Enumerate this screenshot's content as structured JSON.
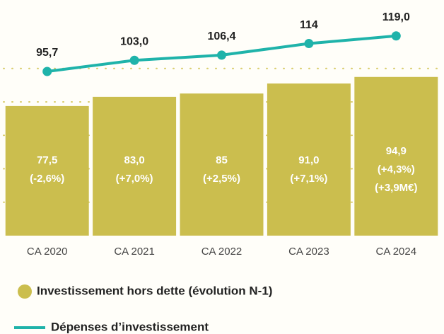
{
  "chart_data": {
    "type": "bar_line",
    "categories": [
      "CA 2020",
      "CA 2021",
      "CA 2022",
      "CA 2023",
      "CA 2024"
    ],
    "series": [
      {
        "name": "Investissement hors dette (évolution N-1)",
        "type": "bar",
        "color": "#cbbe4e",
        "values": [
          77.5,
          83.0,
          85,
          91.0,
          94.9
        ],
        "value_labels": [
          [
            "77,5",
            "(-2,6%)"
          ],
          [
            "83,0",
            "(+7,0%)"
          ],
          [
            "85",
            "(+2,5%)"
          ],
          [
            "91,0",
            "(+7,1%)"
          ],
          [
            "94,9",
            "(+4,3%)",
            "(+3,9M€)"
          ]
        ]
      },
      {
        "name": "Dépenses d’investissement",
        "type": "line",
        "axis": "y2",
        "color": "#1fb3aa",
        "values": [
          95.7,
          103.0,
          106.4,
          114,
          119.0
        ],
        "value_labels": [
          "95,7",
          "103,0",
          "106,4",
          "114",
          "119,0"
        ]
      }
    ],
    "ylim": [
      0,
      124
    ],
    "yticks": [
      20,
      40,
      60,
      80,
      100
    ],
    "y2lim": [
      -12,
      124
    ],
    "grid": true
  }
}
